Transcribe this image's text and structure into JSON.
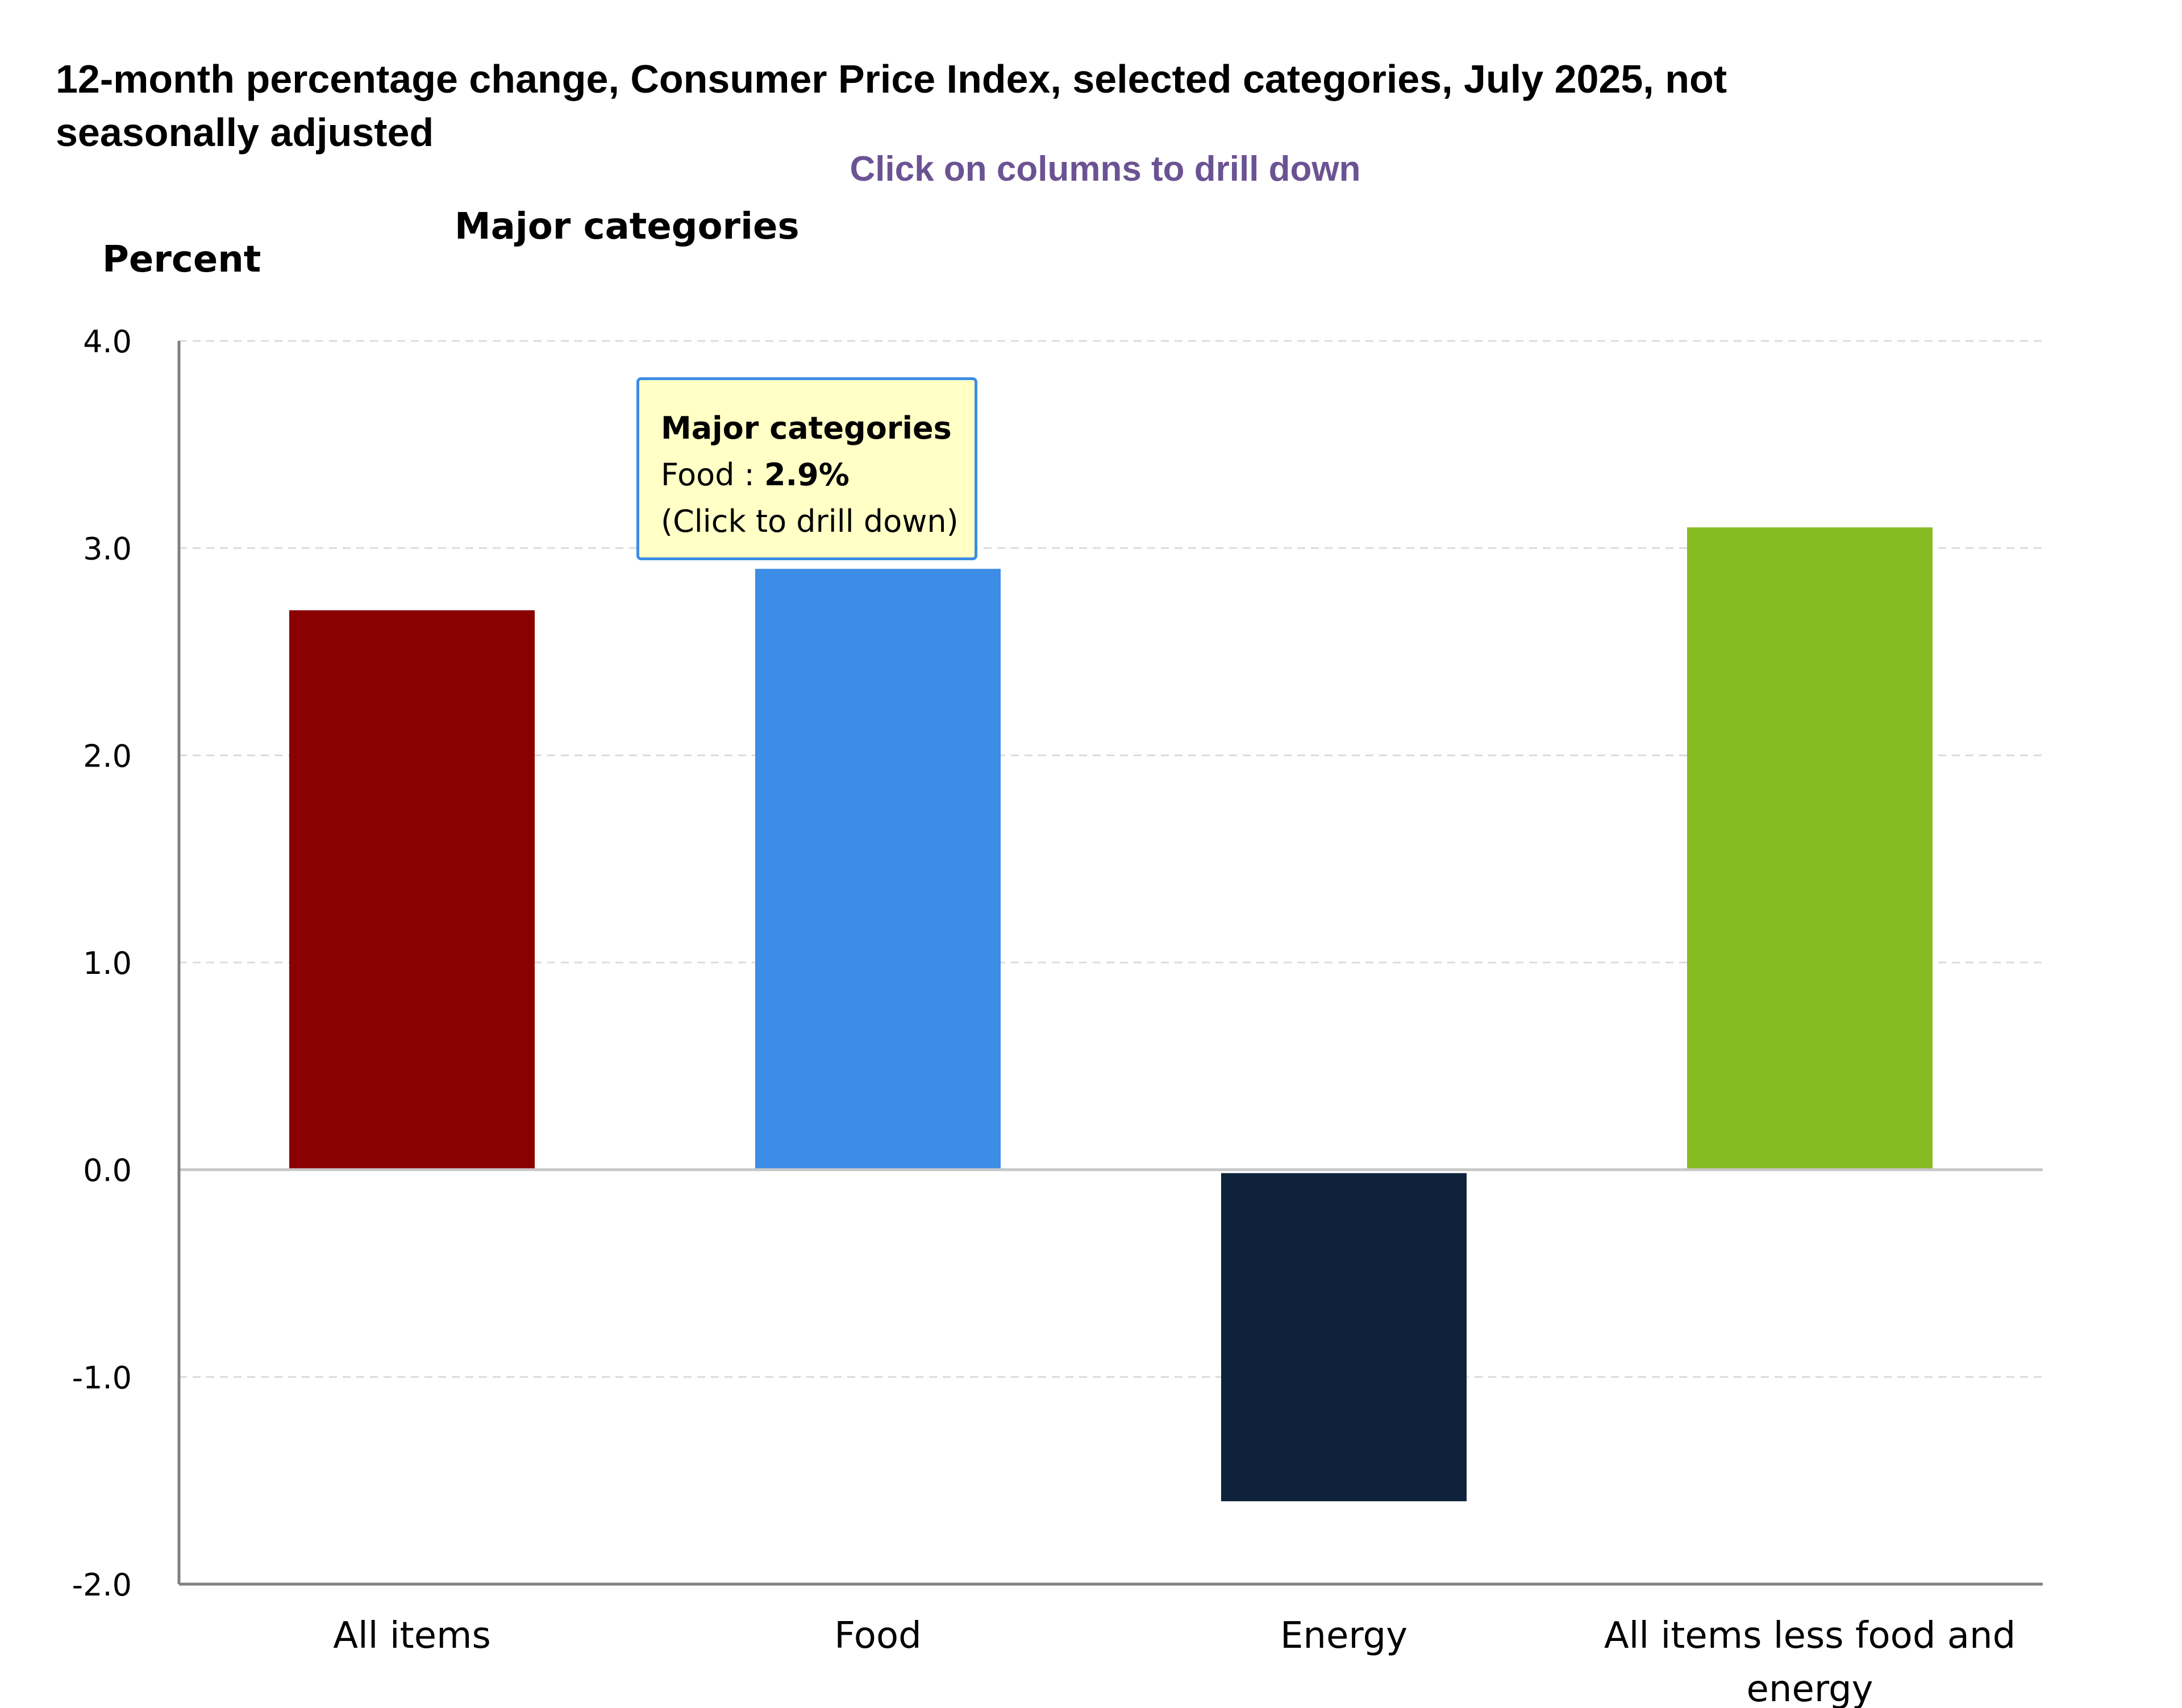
{
  "chart_data": {
    "type": "bar",
    "title": "12-month percentage change, Consumer Price Index, selected categories, July 2025, not seasonally adjusted",
    "instruction": "Click on columns to drill down",
    "subtitle": "Major categories",
    "ylabel": "Percent",
    "xlabel": "",
    "ylim": [
      -2.0,
      4.0
    ],
    "yticks": [
      "4.0",
      "3.0",
      "2.0",
      "1.0",
      "0.0",
      "-1.0",
      "-2.0"
    ],
    "ytick_values": [
      4.0,
      3.0,
      2.0,
      1.0,
      0.0,
      -1.0,
      -2.0
    ],
    "grid": true,
    "categories": [
      "All items",
      "Food",
      "Energy",
      "All items less food and energy"
    ],
    "category_lines": [
      [
        "All items"
      ],
      [
        "Food"
      ],
      [
        "Energy"
      ],
      [
        "All items less food and",
        "energy"
      ]
    ],
    "values": [
      2.7,
      2.9,
      -1.6,
      3.1
    ],
    "colors": [
      "#8b0000",
      "#3d8ce6",
      "#0e223b",
      "#87bb22"
    ],
    "tooltip": {
      "title": "Major categories",
      "category": "Food",
      "separator": " : ",
      "value": "2.9%",
      "hint": "(Click to drill down)"
    }
  }
}
